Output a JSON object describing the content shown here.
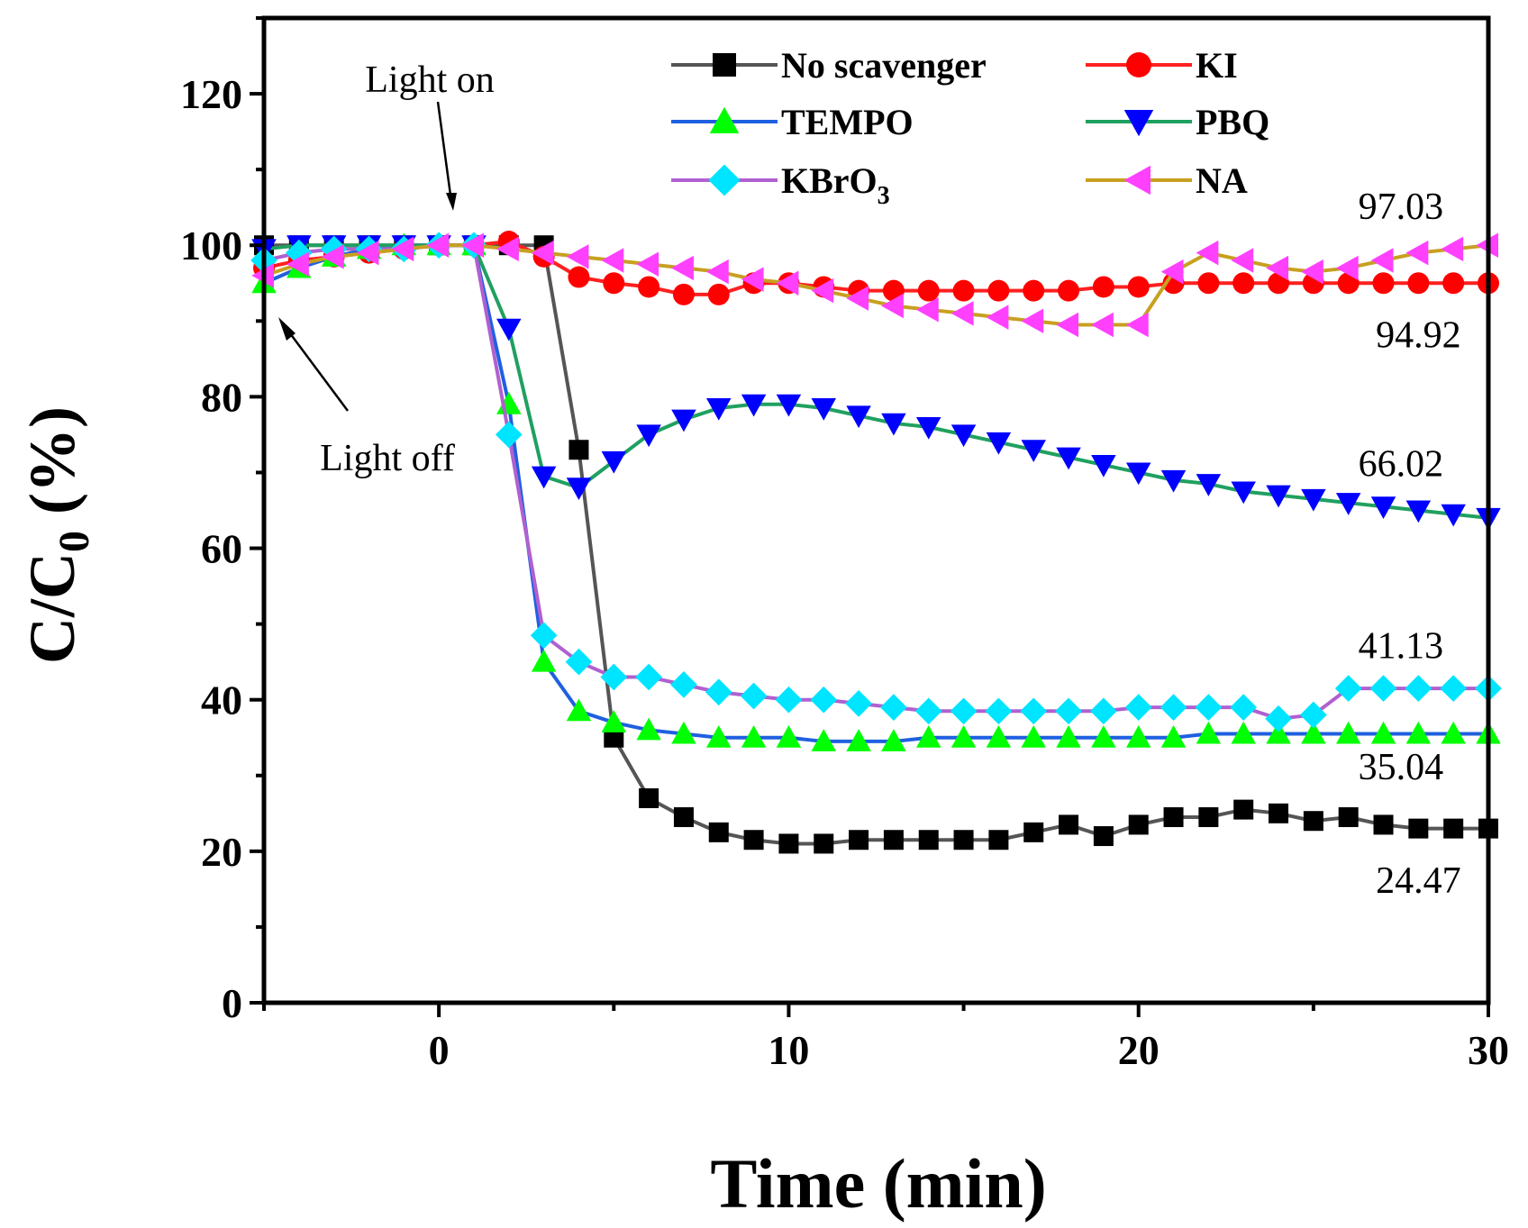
{
  "chart_data": {
    "type": "line",
    "title": "",
    "xlabel": "Time (min)",
    "ylabel_main": "C/C",
    "ylabel_sub": "0",
    "ylabel_suffix": " (%)",
    "xlim": [
      -5,
      30
    ],
    "ylim": [
      0,
      130
    ],
    "x_ticks": [
      0,
      10,
      20,
      30
    ],
    "y_ticks": [
      0,
      20,
      40,
      60,
      80,
      100,
      120
    ],
    "grid": false,
    "legend_position": "top-right",
    "x": [
      -5,
      -4,
      -3,
      -2,
      -1,
      0,
      1,
      2,
      3,
      4,
      5,
      6,
      7,
      8,
      9,
      10,
      11,
      12,
      13,
      14,
      15,
      16,
      17,
      18,
      19,
      20,
      21,
      22,
      23,
      24,
      25,
      26,
      27,
      28,
      29,
      30
    ],
    "series": [
      {
        "name": "No scavenger",
        "marker": "square",
        "line_color": "#555555",
        "marker_color": "#000000",
        "values": [
          100,
          100,
          100,
          100,
          100,
          100,
          100,
          100,
          100,
          73,
          35,
          27,
          24.5,
          22.5,
          21.5,
          21,
          21,
          21.5,
          21.5,
          21.5,
          21.5,
          21.5,
          22.5,
          23.5,
          22,
          23.5,
          24.5,
          24.5,
          25.5,
          25,
          24,
          24.5,
          23.5,
          23,
          23,
          23
        ]
      },
      {
        "name": "KI",
        "marker": "circle",
        "line_color": "#ff2020",
        "marker_color": "#ff0000",
        "values": [
          97,
          98,
          98.5,
          99,
          99.5,
          100,
          100,
          100.5,
          98.5,
          95.8,
          95,
          94.5,
          93.5,
          93.5,
          95,
          95,
          94.5,
          94,
          94,
          94,
          94,
          94,
          94,
          94,
          94.5,
          94.5,
          95,
          95,
          95,
          95,
          95,
          95,
          95,
          95,
          95,
          95
        ]
      },
      {
        "name": "TEMPO",
        "marker": "triangle-up",
        "line_color": "#2060e0",
        "marker_color": "#00ff00",
        "values": [
          95,
          97,
          98.5,
          99.5,
          100,
          100,
          100,
          79,
          45,
          38.5,
          37,
          36,
          35.5,
          35,
          35,
          35,
          34.5,
          34.5,
          34.5,
          35,
          35,
          35,
          35,
          35,
          35,
          35,
          35,
          35.5,
          35.5,
          35.5,
          35.5,
          35.5,
          35.5,
          35.5,
          35.5,
          35.5
        ]
      },
      {
        "name": "PBQ",
        "marker": "triangle-down",
        "line_color": "#20a060",
        "marker_color": "#0000ff",
        "values": [
          99.5,
          100,
          100,
          100,
          100,
          100,
          100,
          89,
          69.5,
          68,
          71.5,
          75,
          77,
          78.5,
          79,
          79,
          78.5,
          77.5,
          76.5,
          76,
          75,
          74,
          73,
          72,
          71,
          70,
          69,
          68.5,
          67.5,
          67,
          66.5,
          66,
          65.5,
          65,
          64.5,
          64
        ]
      },
      {
        "name": "KBrO3",
        "marker": "diamond",
        "line_color": "#b060d0",
        "marker_color": "#00e5ff",
        "values": [
          98,
          99,
          99.5,
          99.5,
          99.5,
          100,
          100,
          75,
          48.5,
          45,
          43,
          43,
          42,
          41,
          40.5,
          40,
          40,
          39.5,
          39,
          38.5,
          38.5,
          38.5,
          38.5,
          38.5,
          38.5,
          39,
          39,
          39,
          39,
          37.5,
          38,
          41.5,
          41.5,
          41.5,
          41.5,
          41.5
        ]
      },
      {
        "name": "NA",
        "marker": "triangle-left",
        "line_color": "#c8a020",
        "marker_color": "#ff40ff",
        "values": [
          96,
          97.5,
          98.5,
          99,
          99.5,
          100,
          100,
          99.5,
          99,
          98.5,
          98,
          97.5,
          97,
          96.5,
          95.5,
          95,
          94,
          93,
          92,
          91.5,
          91,
          90.5,
          90,
          89.5,
          89.5,
          89.5,
          96.5,
          99,
          98,
          97,
          96.5,
          97,
          98,
          99,
          99.5,
          100
        ]
      }
    ],
    "legend": [
      "No scavenger",
      "KI",
      "TEMPO",
      "PBQ",
      "KBrO",
      "NA"
    ],
    "legend_kbro3_subscript": "3",
    "annotations": {
      "light_on": "Light on",
      "light_off": "Light off"
    },
    "value_labels": [
      {
        "text": "97.03",
        "x": 27.5,
        "y": 103.5
      },
      {
        "text": "94.92",
        "x": 28.0,
        "y": 86.5
      },
      {
        "text": "66.02",
        "x": 27.5,
        "y": 69.5
      },
      {
        "text": "41.13",
        "x": 27.5,
        "y": 45.5
      },
      {
        "text": "35.04",
        "x": 27.5,
        "y": 29.5
      },
      {
        "text": "24.47",
        "x": 28.0,
        "y": 14.5
      }
    ]
  }
}
